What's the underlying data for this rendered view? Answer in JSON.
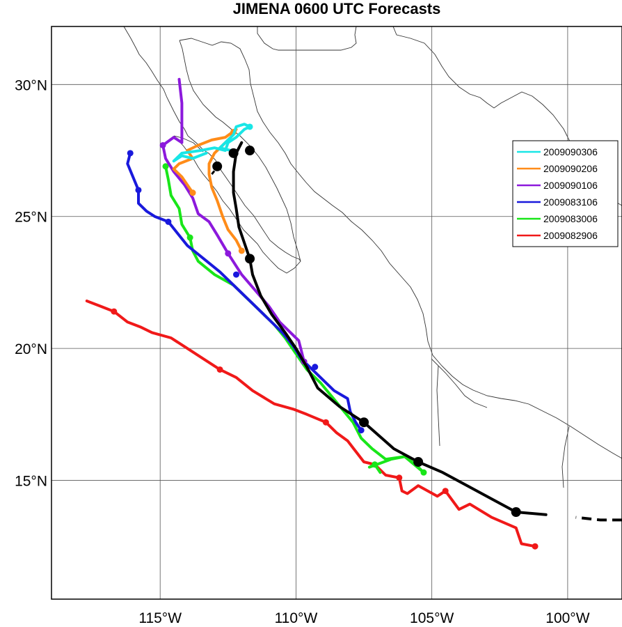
{
  "title": "JIMENA 0600 UTC Forecasts",
  "map": {
    "lon_range": [
      -119.0,
      -98.0
    ],
    "lat_range": [
      10.5,
      32.2
    ],
    "lon_ticks": [
      {
        "lon": -115,
        "label": "115°W"
      },
      {
        "lon": -110,
        "label": "110°W"
      },
      {
        "lon": -105,
        "label": "105°W"
      },
      {
        "lon": -100,
        "label": "100°W"
      }
    ],
    "lat_ticks": [
      {
        "lat": 15,
        "label": "15°N"
      },
      {
        "lat": 20,
        "label": "20°N"
      },
      {
        "lat": 25,
        "label": "25°N"
      },
      {
        "lat": 30,
        "label": "30°N"
      }
    ]
  },
  "chart_data": {
    "type": "map-tracks",
    "legend_placement": "right",
    "series": [
      {
        "name": "2009090306",
        "color": "#19e6e6",
        "points": [
          [
            -113.3,
            27.4
          ],
          [
            -113.8,
            27.2
          ],
          [
            -114.2,
            27.3
          ],
          [
            -114.5,
            27.1
          ],
          [
            -114.2,
            27.4
          ],
          [
            -113.5,
            27.5
          ],
          [
            -113.0,
            27.6
          ],
          [
            -112.6,
            27.5
          ],
          [
            -112.5,
            27.8
          ],
          [
            -112.2,
            28.0
          ],
          [
            -111.9,
            28.3
          ],
          [
            -111.7,
            28.4
          ],
          [
            -111.9,
            28.5
          ],
          [
            -112.2,
            28.4
          ],
          [
            -112.3,
            28.1
          ],
          [
            -112.6,
            27.8
          ],
          [
            -112.8,
            27.6
          ],
          [
            -112.4,
            27.5
          ]
        ],
        "markers": [
          [
            -111.7,
            28.4
          ]
        ]
      },
      {
        "name": "2009090206",
        "color": "#ff8c19",
        "points": [
          [
            -112.0,
            23.7
          ],
          [
            -112.2,
            24.1
          ],
          [
            -112.5,
            24.5
          ],
          [
            -112.7,
            25.0
          ],
          [
            -112.9,
            25.6
          ],
          [
            -113.1,
            26.1
          ],
          [
            -113.2,
            26.6
          ],
          [
            -113.2,
            27.0
          ],
          [
            -113.0,
            27.4
          ],
          [
            -112.7,
            27.7
          ],
          [
            -112.4,
            28.0
          ],
          [
            -112.2,
            28.3
          ],
          [
            -112.6,
            28.0
          ],
          [
            -113.1,
            27.9
          ],
          [
            -113.6,
            27.7
          ],
          [
            -114.0,
            27.5
          ],
          [
            -113.8,
            27.2
          ],
          [
            -114.3,
            27.0
          ],
          [
            -114.5,
            26.8
          ],
          [
            -114.2,
            26.5
          ],
          [
            -114.0,
            26.2
          ],
          [
            -113.8,
            25.9
          ]
        ],
        "markers": [
          [
            -112.0,
            23.7
          ],
          [
            -113.8,
            25.9
          ],
          [
            -112.3,
            28.2
          ]
        ]
      },
      {
        "name": "2009090106",
        "color": "#8c19dc",
        "points": [
          [
            -109.7,
            19.5
          ],
          [
            -109.8,
            19.9
          ],
          [
            -109.9,
            20.3
          ],
          [
            -110.2,
            20.6
          ],
          [
            -110.6,
            21.0
          ],
          [
            -111.0,
            21.6
          ],
          [
            -111.5,
            22.2
          ],
          [
            -112.0,
            22.8
          ],
          [
            -112.5,
            23.6
          ],
          [
            -112.9,
            24.3
          ],
          [
            -113.2,
            24.8
          ],
          [
            -113.6,
            25.1
          ],
          [
            -113.8,
            25.7
          ],
          [
            -114.1,
            26.2
          ],
          [
            -114.5,
            26.7
          ],
          [
            -114.8,
            27.2
          ],
          [
            -114.9,
            27.7
          ],
          [
            -114.5,
            28.0
          ],
          [
            -114.2,
            27.8
          ],
          [
            -114.2,
            28.6
          ],
          [
            -114.2,
            29.3
          ],
          [
            -114.3,
            30.2
          ]
        ],
        "markers": [
          [
            -109.7,
            19.5
          ],
          [
            -112.5,
            23.6
          ],
          [
            -114.9,
            27.7
          ]
        ]
      },
      {
        "name": "2009083106",
        "color": "#1919dc",
        "points": [
          [
            -107.6,
            16.9
          ],
          [
            -107.8,
            17.2
          ],
          [
            -108.0,
            17.6
          ],
          [
            -108.1,
            18.1
          ],
          [
            -108.6,
            18.4
          ],
          [
            -109.0,
            18.8
          ],
          [
            -109.4,
            19.2
          ],
          [
            -109.8,
            19.6
          ],
          [
            -110.1,
            20.1
          ],
          [
            -110.5,
            20.6
          ],
          [
            -111.0,
            21.1
          ],
          [
            -111.6,
            21.7
          ],
          [
            -112.2,
            22.3
          ],
          [
            -112.8,
            22.9
          ],
          [
            -113.4,
            23.4
          ],
          [
            -114.0,
            23.9
          ],
          [
            -114.7,
            24.8
          ],
          [
            -115.2,
            25.0
          ],
          [
            -115.5,
            25.2
          ],
          [
            -115.8,
            25.5
          ],
          [
            -115.8,
            26.0
          ],
          [
            -116.0,
            26.5
          ],
          [
            -116.2,
            27.0
          ],
          [
            -116.1,
            27.4
          ]
        ],
        "markers": [
          [
            -107.6,
            16.9
          ],
          [
            -109.3,
            19.3
          ],
          [
            -112.2,
            22.8
          ],
          [
            -114.7,
            24.8
          ],
          [
            -115.8,
            26.0
          ],
          [
            -116.1,
            27.4
          ]
        ]
      },
      {
        "name": "2009083006",
        "color": "#19e619",
        "points": [
          [
            -106.9,
            15.3
          ],
          [
            -107.1,
            15.6
          ],
          [
            -107.3,
            15.5
          ],
          [
            -106.5,
            15.8
          ],
          [
            -106.0,
            15.9
          ],
          [
            -105.6,
            15.6
          ],
          [
            -105.3,
            15.3
          ],
          [
            -106.0,
            15.9
          ],
          [
            -106.7,
            15.8
          ],
          [
            -107.2,
            16.2
          ],
          [
            -107.6,
            16.6
          ],
          [
            -107.9,
            17.2
          ],
          [
            -108.3,
            17.7
          ],
          [
            -108.7,
            18.2
          ],
          [
            -109.1,
            18.7
          ],
          [
            -109.6,
            19.2
          ],
          [
            -110.0,
            19.8
          ],
          [
            -110.4,
            20.4
          ],
          [
            -110.8,
            20.9
          ],
          [
            -111.3,
            21.4
          ],
          [
            -111.9,
            22.0
          ],
          [
            -112.3,
            22.4
          ],
          [
            -113.0,
            22.8
          ],
          [
            -113.6,
            23.3
          ],
          [
            -113.8,
            23.7
          ],
          [
            -113.9,
            24.2
          ],
          [
            -114.2,
            24.7
          ],
          [
            -114.3,
            25.3
          ],
          [
            -114.6,
            25.8
          ],
          [
            -114.7,
            26.4
          ],
          [
            -114.8,
            26.9
          ]
        ],
        "markers": [
          [
            -105.3,
            15.3
          ],
          [
            -107.1,
            15.6
          ],
          [
            -113.9,
            24.2
          ],
          [
            -114.8,
            26.9
          ]
        ]
      },
      {
        "name": "2009082906",
        "color": "#f01919",
        "points": [
          [
            -101.2,
            12.5
          ],
          [
            -101.7,
            12.6
          ],
          [
            -101.9,
            13.2
          ],
          [
            -102.8,
            13.6
          ],
          [
            -103.6,
            14.1
          ],
          [
            -104.0,
            13.9
          ],
          [
            -104.5,
            14.6
          ],
          [
            -104.8,
            14.4
          ],
          [
            -105.5,
            14.8
          ],
          [
            -105.9,
            14.5
          ],
          [
            -106.1,
            14.6
          ],
          [
            -106.2,
            15.1
          ],
          [
            -106.7,
            15.2
          ],
          [
            -107.1,
            15.6
          ],
          [
            -107.5,
            15.7
          ],
          [
            -107.8,
            16.1
          ],
          [
            -108.1,
            16.5
          ],
          [
            -108.5,
            16.8
          ],
          [
            -108.9,
            17.2
          ],
          [
            -109.6,
            17.5
          ],
          [
            -110.1,
            17.7
          ],
          [
            -110.8,
            17.9
          ],
          [
            -111.6,
            18.4
          ],
          [
            -112.2,
            18.9
          ],
          [
            -112.8,
            19.2
          ],
          [
            -113.4,
            19.6
          ],
          [
            -114.0,
            20.0
          ],
          [
            -114.6,
            20.4
          ],
          [
            -115.3,
            20.6
          ],
          [
            -115.7,
            20.8
          ],
          [
            -116.2,
            21.0
          ],
          [
            -116.7,
            21.4
          ],
          [
            -117.2,
            21.6
          ],
          [
            -117.7,
            21.8
          ]
        ],
        "markers": [
          [
            -101.2,
            12.5
          ],
          [
            -104.5,
            14.6
          ],
          [
            -106.2,
            15.1
          ],
          [
            -108.9,
            17.2
          ],
          [
            -112.8,
            19.2
          ],
          [
            -116.7,
            21.4
          ]
        ]
      }
    ],
    "best_track": {
      "color": "#000000",
      "points": [
        [
          -98.0,
          13.5
        ],
        [
          -98.8,
          13.5
        ],
        [
          -99.7,
          13.6
        ],
        [
          -100.8,
          13.7
        ],
        [
          -101.9,
          13.8
        ],
        [
          -102.8,
          14.3
        ],
        [
          -103.7,
          14.8
        ],
        [
          -104.6,
          15.3
        ],
        [
          -105.5,
          15.7
        ],
        [
          -106.4,
          16.2
        ],
        [
          -107.5,
          17.2
        ],
        [
          -108.4,
          17.8
        ],
        [
          -109.2,
          18.5
        ],
        [
          -109.6,
          19.3
        ],
        [
          -110.0,
          20.0
        ],
        [
          -110.4,
          20.6
        ],
        [
          -110.9,
          21.3
        ],
        [
          -111.3,
          22.0
        ],
        [
          -111.6,
          22.8
        ],
        [
          -111.7,
          23.4
        ],
        [
          -111.9,
          24.0
        ],
        [
          -112.1,
          24.6
        ],
        [
          -112.2,
          25.3
        ],
        [
          -112.3,
          25.9
        ],
        [
          -112.3,
          26.7
        ],
        [
          -112.2,
          27.4
        ],
        [
          -112.0,
          27.8
        ]
      ],
      "dashed_from_lon": -99.8,
      "markers": [
        [
          -101.9,
          13.8
        ],
        [
          -105.5,
          15.7
        ],
        [
          -107.5,
          17.2
        ],
        [
          -111.7,
          23.4
        ],
        [
          -112.9,
          26.9
        ],
        [
          -112.3,
          27.4
        ],
        [
          -111.7,
          27.5
        ]
      ],
      "extra_segment": [
        [
          -113.1,
          26.6
        ],
        [
          -112.8,
          27.0
        ]
      ]
    }
  }
}
